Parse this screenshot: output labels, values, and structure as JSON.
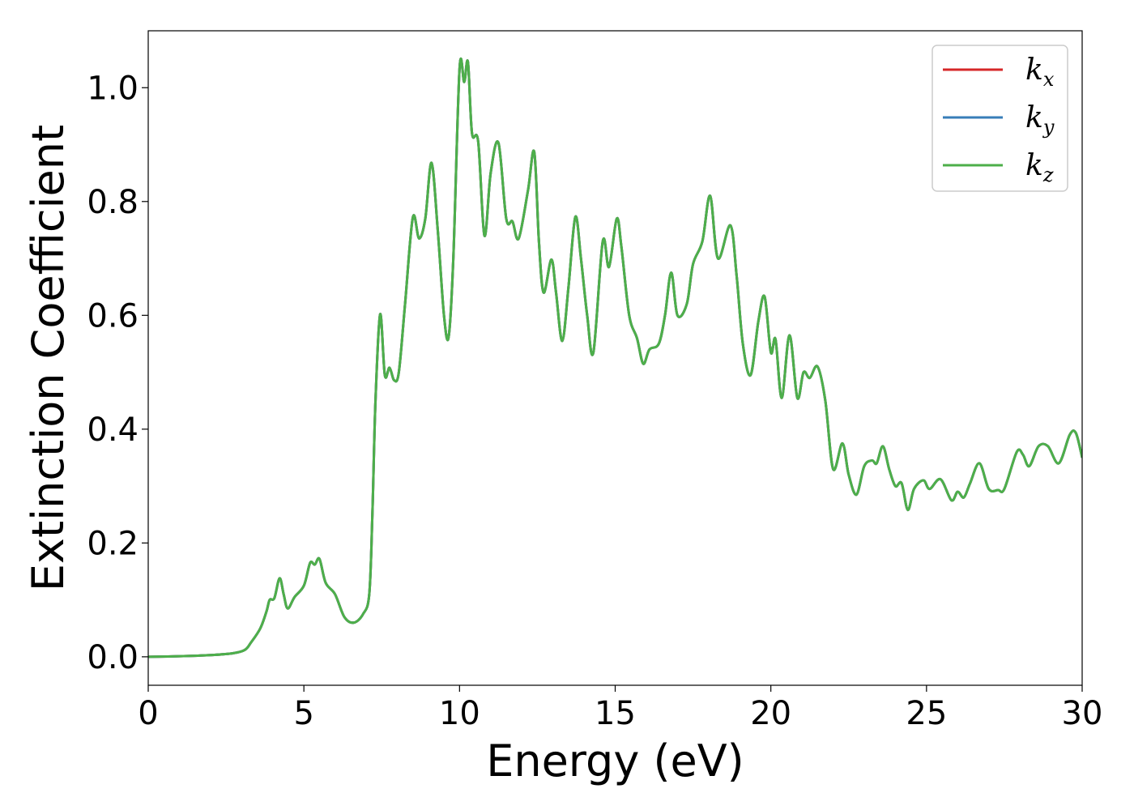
{
  "chart_data": {
    "type": "line",
    "xlabel": "Energy (eV)",
    "ylabel": "Extinction Coefficient",
    "xlim": [
      0,
      30
    ],
    "ylim": [
      -0.05,
      1.1
    ],
    "xticks": [
      0,
      5,
      10,
      15,
      20,
      25,
      30
    ],
    "yticks": [
      0.0,
      0.2,
      0.4,
      0.6,
      0.8,
      1.0
    ],
    "xtick_labels": [
      "0",
      "5",
      "10",
      "15",
      "20",
      "25",
      "30"
    ],
    "ytick_labels": [
      "0.0",
      "0.2",
      "0.4",
      "0.6",
      "0.8",
      "1.0"
    ],
    "grid": false,
    "legend_position": "top-right",
    "legend": [
      {
        "base": "k",
        "sub": "x",
        "color": "#d62728"
      },
      {
        "base": "k",
        "sub": "y",
        "color": "#377eb8"
      },
      {
        "base": "k",
        "sub": "z",
        "color": "#4daf4a"
      }
    ],
    "series_points": [
      [
        0.0,
        0.0
      ],
      [
        1.0,
        0.001
      ],
      [
        2.0,
        0.003
      ],
      [
        2.7,
        0.006
      ],
      [
        3.1,
        0.012
      ],
      [
        3.3,
        0.025
      ],
      [
        3.6,
        0.05
      ],
      [
        3.8,
        0.08
      ],
      [
        3.9,
        0.1
      ],
      [
        4.05,
        0.103
      ],
      [
        4.22,
        0.138
      ],
      [
        4.35,
        0.11
      ],
      [
        4.48,
        0.085
      ],
      [
        4.7,
        0.105
      ],
      [
        5.0,
        0.125
      ],
      [
        5.2,
        0.165
      ],
      [
        5.35,
        0.162
      ],
      [
        5.5,
        0.172
      ],
      [
        5.7,
        0.13
      ],
      [
        6.0,
        0.11
      ],
      [
        6.3,
        0.07
      ],
      [
        6.6,
        0.06
      ],
      [
        6.9,
        0.075
      ],
      [
        7.1,
        0.11
      ],
      [
        7.2,
        0.25
      ],
      [
        7.3,
        0.45
      ],
      [
        7.45,
        0.602
      ],
      [
        7.6,
        0.495
      ],
      [
        7.75,
        0.508
      ],
      [
        7.9,
        0.486
      ],
      [
        8.05,
        0.5
      ],
      [
        8.25,
        0.62
      ],
      [
        8.5,
        0.772
      ],
      [
        8.7,
        0.735
      ],
      [
        8.9,
        0.77
      ],
      [
        9.1,
        0.868
      ],
      [
        9.3,
        0.75
      ],
      [
        9.5,
        0.6
      ],
      [
        9.65,
        0.562
      ],
      [
        9.8,
        0.7
      ],
      [
        10.0,
        1.033
      ],
      [
        10.15,
        1.01
      ],
      [
        10.27,
        1.045
      ],
      [
        10.4,
        0.92
      ],
      [
        10.6,
        0.905
      ],
      [
        10.8,
        0.74
      ],
      [
        11.0,
        0.85
      ],
      [
        11.25,
        0.903
      ],
      [
        11.5,
        0.77
      ],
      [
        11.7,
        0.765
      ],
      [
        11.9,
        0.735
      ],
      [
        12.2,
        0.82
      ],
      [
        12.4,
        0.887
      ],
      [
        12.55,
        0.73
      ],
      [
        12.7,
        0.64
      ],
      [
        12.95,
        0.698
      ],
      [
        13.1,
        0.64
      ],
      [
        13.3,
        0.555
      ],
      [
        13.5,
        0.65
      ],
      [
        13.72,
        0.773
      ],
      [
        13.9,
        0.7
      ],
      [
        14.1,
        0.6
      ],
      [
        14.3,
        0.535
      ],
      [
        14.6,
        0.73
      ],
      [
        14.8,
        0.685
      ],
      [
        15.05,
        0.77
      ],
      [
        15.2,
        0.72
      ],
      [
        15.45,
        0.6
      ],
      [
        15.7,
        0.56
      ],
      [
        15.9,
        0.515
      ],
      [
        16.1,
        0.54
      ],
      [
        16.4,
        0.55
      ],
      [
        16.6,
        0.6
      ],
      [
        16.8,
        0.675
      ],
      [
        17.0,
        0.6
      ],
      [
        17.3,
        0.62
      ],
      [
        17.5,
        0.69
      ],
      [
        17.8,
        0.73
      ],
      [
        18.05,
        0.81
      ],
      [
        18.3,
        0.7
      ],
      [
        18.7,
        0.758
      ],
      [
        18.9,
        0.67
      ],
      [
        19.1,
        0.55
      ],
      [
        19.35,
        0.495
      ],
      [
        19.6,
        0.59
      ],
      [
        19.8,
        0.633
      ],
      [
        20.0,
        0.535
      ],
      [
        20.15,
        0.558
      ],
      [
        20.35,
        0.455
      ],
      [
        20.6,
        0.565
      ],
      [
        20.85,
        0.455
      ],
      [
        21.05,
        0.5
      ],
      [
        21.25,
        0.49
      ],
      [
        21.5,
        0.51
      ],
      [
        21.75,
        0.45
      ],
      [
        22.0,
        0.33
      ],
      [
        22.3,
        0.375
      ],
      [
        22.5,
        0.32
      ],
      [
        22.75,
        0.285
      ],
      [
        23.0,
        0.335
      ],
      [
        23.25,
        0.345
      ],
      [
        23.4,
        0.34
      ],
      [
        23.6,
        0.37
      ],
      [
        23.8,
        0.33
      ],
      [
        24.0,
        0.3
      ],
      [
        24.2,
        0.305
      ],
      [
        24.4,
        0.258
      ],
      [
        24.6,
        0.295
      ],
      [
        24.9,
        0.31
      ],
      [
        25.1,
        0.295
      ],
      [
        25.45,
        0.312
      ],
      [
        25.8,
        0.275
      ],
      [
        26.0,
        0.29
      ],
      [
        26.2,
        0.28
      ],
      [
        26.4,
        0.305
      ],
      [
        26.7,
        0.34
      ],
      [
        27.0,
        0.295
      ],
      [
        27.3,
        0.293
      ],
      [
        27.5,
        0.295
      ],
      [
        27.9,
        0.36
      ],
      [
        28.1,
        0.355
      ],
      [
        28.3,
        0.335
      ],
      [
        28.6,
        0.37
      ],
      [
        28.9,
        0.37
      ],
      [
        29.25,
        0.34
      ],
      [
        29.6,
        0.39
      ],
      [
        29.8,
        0.393
      ],
      [
        30.0,
        0.35
      ]
    ]
  }
}
